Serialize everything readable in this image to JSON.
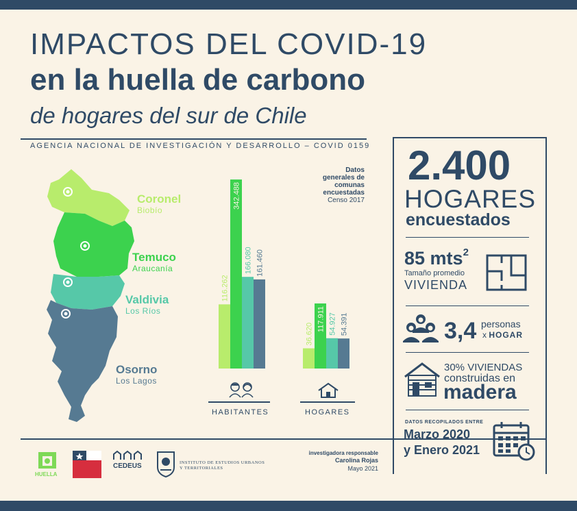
{
  "title": {
    "line1": "IMPACTOS DEL COVID-19",
    "line2": "en la huella de carbono",
    "line3": "de hogares del sur de Chile"
  },
  "agency": "AGENCIA NACIONAL DE INVESTIGACIÓN Y DESARROLLO – COVID 0159",
  "regions": [
    {
      "city": "Coronel",
      "region": "Biobío",
      "color": "#b8ec6c"
    },
    {
      "city": "Temuco",
      "region": "Araucanía",
      "color": "#3cd24e"
    },
    {
      "city": "Valdivia",
      "region": "Los Ríos",
      "color": "#56c8a8"
    },
    {
      "city": "Osorno",
      "region": "Los Lagos",
      "color": "#567a92"
    }
  ],
  "datos_note": {
    "bold": "Datos generales de comunas encuestadas",
    "normal": "Censo 2017"
  },
  "chart_data": {
    "type": "bar",
    "categories": [
      "HABITANTES",
      "HOGARES"
    ],
    "series": [
      {
        "name": "Coronel",
        "values": [
          116262,
          36620
        ],
        "labels": [
          "116.262",
          "36.620"
        ],
        "color": "#b8ec6c"
      },
      {
        "name": "Temuco",
        "values": [
          342488,
          117911
        ],
        "labels": [
          "342.488",
          "117.911"
        ],
        "color": "#3cd24e"
      },
      {
        "name": "Valdivia",
        "values": [
          166080,
          54927
        ],
        "labels": [
          "166.080",
          "54.927"
        ],
        "color": "#56c8a8"
      },
      {
        "name": "Osorno",
        "values": [
          161460,
          54391
        ],
        "labels": [
          "161.460",
          "54.391"
        ],
        "color": "#567a92"
      }
    ]
  },
  "stats": {
    "hogares_num": "2.400",
    "hogares_label": "HOGARES",
    "encuestados": "encuestados",
    "mts_value": "85 mts",
    "mts_sup": "2",
    "tamano": "Tamaño promedio",
    "vivienda": "VIVIENDA",
    "personas_num": "3,4",
    "personas_label": "personas",
    "x_label": "x",
    "hogar_label": "HOGAR",
    "madera_a": "30% VIVIENDAS",
    "madera_b": "construidas en",
    "madera_c": "madera",
    "datos_recop": "DATOS RECOPILADOS ENTRE",
    "fecha_a": "Marzo 2020",
    "fecha_b": "y Enero 2021"
  },
  "investigadora": {
    "role": "investigadora responsable",
    "name": "Carolina Rojas",
    "date": "Mayo 2021"
  },
  "logos": {
    "huella": "HUELLA",
    "cedeus": "CEDEUS",
    "instituto_a": "INSTITUTO DE ESTUDIOS URBANOS",
    "instituto_b": "Y TERRITORIALES"
  },
  "colors": {
    "navy": "#2f4a66",
    "background": "#faf3e6"
  },
  "icons": [
    "floorplan-icon",
    "people-icon",
    "house-icon",
    "calendar-icon",
    "pin-icon"
  ]
}
